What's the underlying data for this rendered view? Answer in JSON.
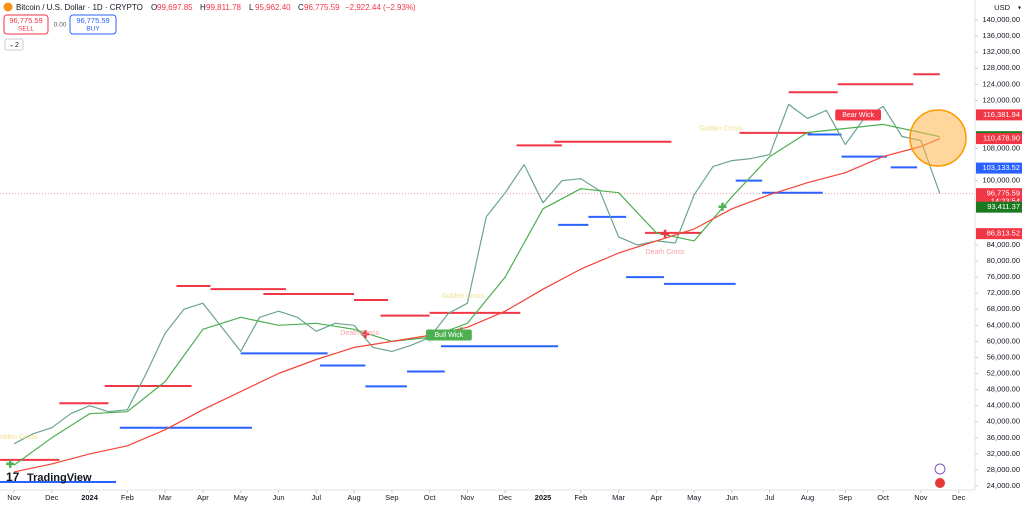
{
  "header": {
    "symbol": "Bitcoin / U.S. Dollar · 1D · CRYPTO",
    "ohlc": [
      {
        "label": "O",
        "value": "99,697.85"
      },
      {
        "label": "H",
        "value": "99,811.78"
      },
      {
        "label": "L",
        "value": "95,962.40"
      },
      {
        "label": "C",
        "value": "96,775.59"
      }
    ],
    "change": "−2,922.44 (−2.93%)",
    "sell": {
      "price": "96,775.59",
      "label": "SELL"
    },
    "spread": "0.00",
    "buy": {
      "price": "96,775.59",
      "label": "BUY"
    },
    "indicators_count": "2",
    "currency": "USD",
    "logo": "TradingView"
  },
  "chart_data": {
    "type": "line",
    "xlim": [
      -0.37,
      25.3
    ],
    "xticks": [
      {
        "value": 0,
        "label": "Nov"
      },
      {
        "value": 1,
        "label": "Dec"
      },
      {
        "value": 2,
        "label": "2024"
      },
      {
        "value": 3,
        "label": "Feb"
      },
      {
        "value": 4,
        "label": "Mar"
      },
      {
        "value": 5,
        "label": "Apr"
      },
      {
        "value": 6,
        "label": "May"
      },
      {
        "value": 7,
        "label": "Jun"
      },
      {
        "value": 8,
        "label": "Jul"
      },
      {
        "value": 9,
        "label": "Aug"
      },
      {
        "value": 10,
        "label": "Sep"
      },
      {
        "value": 11,
        "label": "Oct"
      },
      {
        "value": 12,
        "label": "Nov"
      },
      {
        "value": 13,
        "label": "Dec"
      },
      {
        "value": 14,
        "label": "2025"
      },
      {
        "value": 15,
        "label": "Feb"
      },
      {
        "value": 16,
        "label": "Mar"
      },
      {
        "value": 17,
        "label": "Apr"
      },
      {
        "value": 18,
        "label": "May"
      },
      {
        "value": 19,
        "label": "Jun"
      },
      {
        "value": 20,
        "label": "Jul"
      },
      {
        "value": 21,
        "label": "Aug"
      },
      {
        "value": 22,
        "label": "Sep"
      },
      {
        "value": 23,
        "label": "Oct"
      },
      {
        "value": 24,
        "label": "Nov"
      },
      {
        "value": 25,
        "label": "Dec"
      }
    ],
    "ylim": [
      23004,
      144480
    ],
    "yticks": [
      {
        "value": 24000,
        "label": "24,000.00"
      },
      {
        "value": 28000,
        "label": "28,000.00"
      },
      {
        "value": 32000,
        "label": "32,000.00"
      },
      {
        "value": 36000,
        "label": "36,000.00"
      },
      {
        "value": 40000,
        "label": "40,000.00"
      },
      {
        "value": 44000,
        "label": "44,000.00"
      },
      {
        "value": 48000,
        "label": "48,000.00"
      },
      {
        "value": 52000,
        "label": "52,000.00"
      },
      {
        "value": 56000,
        "label": "56,000.00"
      },
      {
        "value": 60000,
        "label": "60,000.00"
      },
      {
        "value": 64000,
        "label": "64,000.00"
      },
      {
        "value": 68000,
        "label": "68,000.00"
      },
      {
        "value": 72000,
        "label": "72,000.00"
      },
      {
        "value": 76000,
        "label": "76,000.00"
      },
      {
        "value": 80000,
        "label": "80,000.00"
      },
      {
        "value": 84000,
        "label": "84,000.00"
      },
      {
        "value": 100000,
        "label": "100,000.00"
      },
      {
        "value": 108000,
        "label": "108,000.00"
      },
      {
        "value": 120000,
        "label": "120,000.00"
      },
      {
        "value": 124000,
        "label": "124,000.00"
      },
      {
        "value": 128000,
        "label": "128,000.00"
      },
      {
        "value": 132000,
        "label": "132,000.00"
      },
      {
        "value": 136000,
        "label": "136,000.00"
      },
      {
        "value": 140000,
        "label": "140,000.00"
      }
    ],
    "grid": false,
    "series": [
      {
        "color": "#6aa58f",
        "width": 1.2,
        "x": [
          0,
          0.5,
          1,
          1.5,
          2,
          2.5,
          3,
          3.5,
          4,
          4.5,
          5,
          5.5,
          6,
          6.5,
          7,
          7.5,
          8,
          8.5,
          9,
          9.5,
          10,
          10.5,
          11,
          11.5,
          12,
          12.5,
          13,
          13.5,
          14,
          14.5,
          15,
          15.5,
          16,
          16.5,
          17,
          17.5,
          18,
          18.5,
          19,
          19.5,
          20,
          20.5,
          21,
          21.5,
          22,
          22.5,
          23,
          23.5,
          24,
          24.5
        ],
        "values": [
          34500,
          37000,
          38500,
          42000,
          44000,
          42500,
          43000,
          52000,
          62000,
          68000,
          69500,
          63500,
          57500,
          66000,
          67500,
          66000,
          62500,
          64500,
          64000,
          58500,
          57500,
          59000,
          61000,
          67000,
          69500,
          91000,
          97000,
          104000,
          94500,
          100000,
          100500,
          97500,
          86000,
          84000,
          85000,
          84500,
          96500,
          103500,
          105000,
          105500,
          106500,
          119000,
          115500,
          117500,
          109000,
          115500,
          118500,
          111000,
          110000,
          96775.59
        ]
      },
      {
        "color": "#4caf50",
        "width": 1.2,
        "x": [
          0,
          1,
          2,
          3,
          4,
          5,
          6,
          7,
          8,
          9,
          10,
          11,
          12,
          13,
          14,
          15,
          16,
          17,
          18,
          19,
          20,
          21,
          22,
          23,
          24,
          24.5
        ],
        "values": [
          29200,
          36000,
          42000,
          42500,
          50000,
          63000,
          66000,
          64000,
          64500,
          63000,
          60000,
          61000,
          64500,
          76000,
          93000,
          98000,
          97000,
          87000,
          85000,
          96000,
          106000,
          112000,
          113000,
          114000,
          112000,
          110953.65
        ]
      },
      {
        "color": "#f44336",
        "width": 1.2,
        "x": [
          0,
          1,
          2,
          3,
          4,
          5,
          6,
          7,
          8,
          9,
          10,
          11,
          12,
          13,
          14,
          15,
          16,
          17,
          18,
          19,
          20,
          21,
          22,
          23,
          24,
          24.5
        ],
        "values": [
          27500,
          29500,
          32000,
          34000,
          38000,
          43000,
          47500,
          52000,
          55500,
          58500,
          60000,
          61500,
          63500,
          67500,
          73000,
          78000,
          82000,
          85000,
          88000,
          93000,
          96500,
          99500,
          102000,
          106000,
          108500,
          110478.9
        ]
      }
    ],
    "levels": [
      {
        "color": "#f23645",
        "segments": [
          [
            -0.37,
            1.2,
            30500
          ],
          [
            1.2,
            2.5,
            44600
          ],
          [
            2.4,
            4.7,
            48900
          ],
          [
            4.3,
            5.2,
            73800
          ],
          [
            5.2,
            7.2,
            73000
          ],
          [
            6.6,
            9.0,
            71800
          ],
          [
            9.0,
            9.9,
            70300
          ],
          [
            9.7,
            11.0,
            66400
          ],
          [
            11.0,
            13.4,
            67100
          ],
          [
            13.3,
            14.5,
            108800
          ],
          [
            14.3,
            17.4,
            109700
          ],
          [
            16.7,
            18.2,
            87000
          ],
          [
            19.2,
            21.1,
            111900
          ],
          [
            20.5,
            21.8,
            122000
          ],
          [
            21.8,
            23.8,
            124000
          ],
          [
            23.8,
            24.5,
            126500
          ]
        ]
      },
      {
        "color": "#2962ff",
        "segments": [
          [
            -0.37,
            2.7,
            25000
          ],
          [
            2.8,
            6.3,
            38500
          ],
          [
            6.0,
            8.3,
            57000
          ],
          [
            8.1,
            9.3,
            54000
          ],
          [
            9.3,
            10.4,
            48800
          ],
          [
            10.4,
            11.4,
            52500
          ],
          [
            11.3,
            14.4,
            58800
          ],
          [
            14.4,
            15.2,
            89000
          ],
          [
            15.2,
            16.2,
            91000
          ],
          [
            16.2,
            17.2,
            76000
          ],
          [
            17.2,
            19.1,
            74300
          ],
          [
            19.1,
            19.8,
            100000
          ],
          [
            19.8,
            21.4,
            97000
          ],
          [
            21.0,
            21.9,
            111500
          ],
          [
            21.9,
            23.1,
            106000
          ],
          [
            23.2,
            23.9,
            103300
          ]
        ]
      }
    ],
    "signals": [
      {
        "x": -0.1,
        "y": 29500,
        "color": "#4caf50"
      },
      {
        "x": 9.3,
        "y": 61800,
        "color": "#f23645"
      },
      {
        "x": 11.84,
        "y": 62500,
        "color": "#4caf50"
      },
      {
        "x": 17.23,
        "y": 86800,
        "color": "#f23645"
      },
      {
        "x": 18.75,
        "y": 93500,
        "color": "#4caf50"
      }
    ],
    "annotations": [
      {
        "text": "Bear Wick",
        "x": 22.34,
        "y": 116350,
        "color": "#f23645",
        "boxed": true
      },
      {
        "text": "Bull Wick",
        "x": 11.51,
        "y": 61600,
        "color": "#4caf50",
        "boxed": true
      },
      {
        "text": "Death Cross",
        "x": 17.23,
        "y": 82250,
        "color": "#f7a1a8",
        "boxed": false
      },
      {
        "text": "Death Cross",
        "x": 9.15,
        "y": 62000,
        "color": "#f7a1a8",
        "boxed": false
      },
      {
        "text": "Golden Cross",
        "x": 11.88,
        "y": 71300,
        "color": "#f2e08a",
        "boxed": false
      },
      {
        "text": "Golden Cross",
        "x": 18.7,
        "y": 113000,
        "color": "#f2e08a",
        "boxed": false
      },
      {
        "text": "Golden Cross",
        "x": 0.05,
        "y": 36200,
        "color": "#f2e08a",
        "boxed": false
      }
    ],
    "price_labels": [
      {
        "value": 116381.94,
        "label": "116,381.94",
        "color": "#f23645"
      },
      {
        "value": 110953.65,
        "label": "110,953.65",
        "color": "#1b7a1f"
      },
      {
        "value": 110478.9,
        "label": "110,478.90",
        "color": "#f23645"
      },
      {
        "value": 103133.52,
        "label": "103,133.52",
        "color": "#2962ff"
      },
      {
        "value": 96775.59,
        "label": "96,775.59",
        "color": "#f23645"
      },
      {
        "value": 93411.37,
        "label": "93,411.37",
        "color": "#1b7a1f"
      },
      {
        "value": 86813.52,
        "label": "86,813.52",
        "color": "#f23645"
      }
    ],
    "countdown": "14:23:54"
  }
}
